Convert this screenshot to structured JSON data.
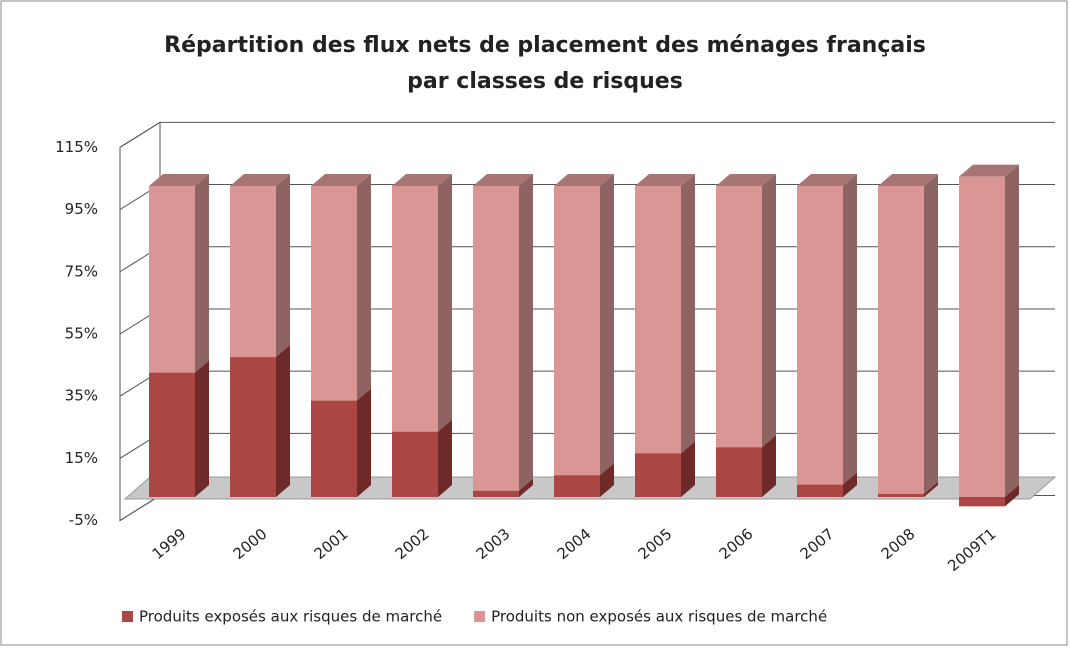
{
  "chart_data": {
    "type": "stacked-bar-3d",
    "title": [
      "Répartition des flux nets de placement des ménages français",
      "par classes de risques"
    ],
    "categories": [
      "1999",
      "2000",
      "2001",
      "2002",
      "2003",
      "2004",
      "2005",
      "2006",
      "2007",
      "2008",
      "2009T1"
    ],
    "series": [
      {
        "name": "Produits exposés aux risques de marché",
        "color": "#aa4643",
        "side": "#6e2a29",
        "top": "#8a3a38",
        "values": [
          40,
          45,
          31,
          21,
          2,
          7,
          14,
          16,
          4,
          1,
          -3
        ]
      },
      {
        "name": "Produits non exposés aux risques de marché",
        "color": "#d99694",
        "side": "#8e6462",
        "top": "#a77674",
        "values": [
          60,
          55,
          69,
          79,
          98,
          93,
          86,
          84,
          96,
          99,
          103
        ]
      }
    ],
    "ylim": [
      -5,
      115
    ],
    "yticks": [
      {
        "value": -5,
        "label": "-5%"
      },
      {
        "value": 15,
        "label": "15%"
      },
      {
        "value": 35,
        "label": "35%"
      },
      {
        "value": 55,
        "label": "55%"
      },
      {
        "value": 75,
        "label": "75%"
      },
      {
        "value": 95,
        "label": "95%"
      },
      {
        "value": 115,
        "label": "115%"
      }
    ],
    "grid": true,
    "legend": "bottom"
  }
}
